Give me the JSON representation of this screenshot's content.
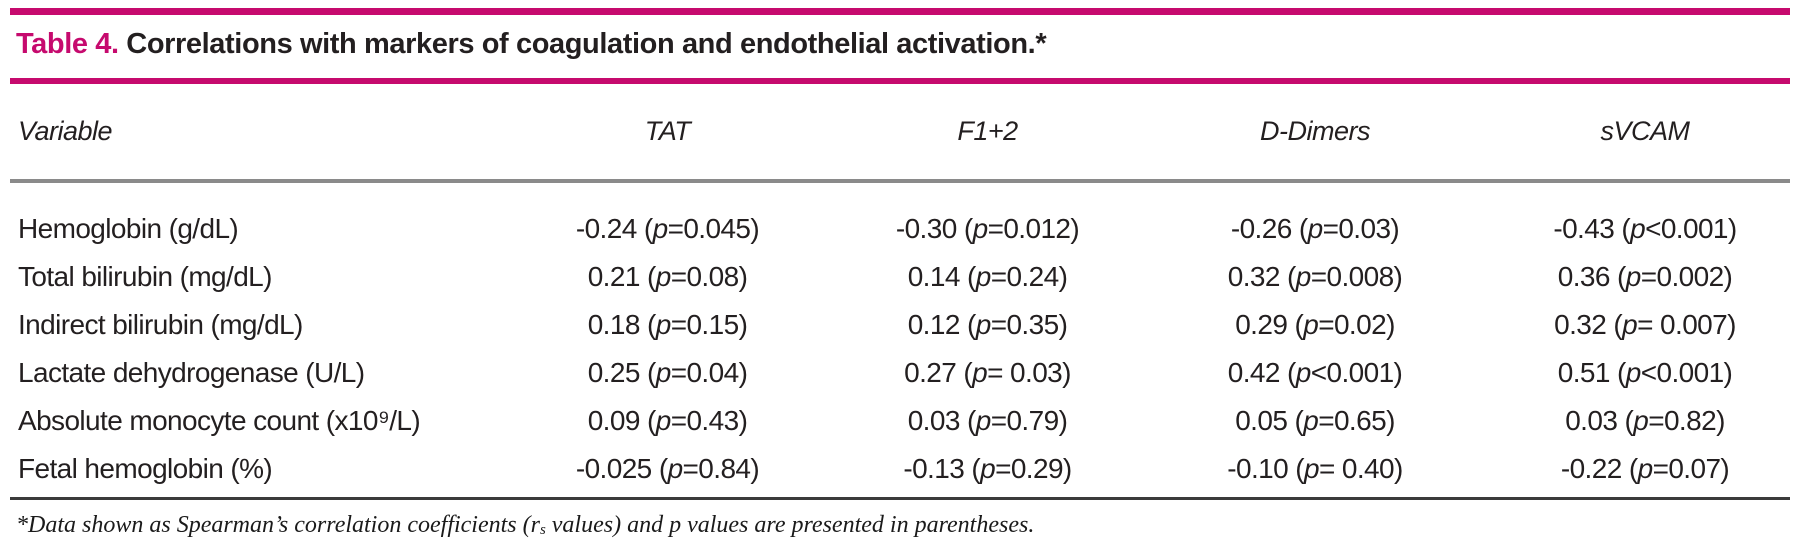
{
  "colors": {
    "accent_pink": "#c60a6e",
    "rule_gray": "#8a8a8a",
    "rule_dark": "#3b3b3b",
    "text": "#231f20"
  },
  "title": {
    "label": "Table 4.",
    "text": " Correlations with markers of coagulation and endothelial activation.*"
  },
  "table": {
    "p_label": "p",
    "columns": [
      "Variable",
      "TAT",
      "F1+2",
      "D-Dimers",
      "sVCAM"
    ],
    "rows": [
      {
        "variable": "Hemoglobin (g/dL)",
        "cells": [
          {
            "r": "-0.24",
            "p": "=0.045"
          },
          {
            "r": "-0.30",
            "p": "=0.012"
          },
          {
            "r": "-0.26",
            "p": "=0.03"
          },
          {
            "r": "-0.43",
            "p": "<0.001"
          }
        ]
      },
      {
        "variable": "Total bilirubin (mg/dL)",
        "cells": [
          {
            "r": "0.21",
            "p": "=0.08"
          },
          {
            "r": "0.14",
            "p": "=0.24"
          },
          {
            "r": "0.32",
            "p": "=0.008"
          },
          {
            "r": "0.36",
            "p": "=0.002"
          }
        ]
      },
      {
        "variable": "Indirect bilirubin (mg/dL)",
        "cells": [
          {
            "r": "0.18",
            "p": "=0.15"
          },
          {
            "r": "0.12",
            "p": "=0.35"
          },
          {
            "r": "0.29",
            "p": "=0.02"
          },
          {
            "r": "0.32",
            "p": "= 0.007"
          }
        ]
      },
      {
        "variable": "Lactate dehydrogenase (U/L)",
        "cells": [
          {
            "r": "0.25",
            "p": "=0.04"
          },
          {
            "r": "0.27",
            "p": "= 0.03"
          },
          {
            "r": "0.42",
            "p": "<0.001"
          },
          {
            "r": "0.51",
            "p": "<0.001"
          }
        ]
      },
      {
        "variable": "Absolute monocyte count (x10⁹/L)",
        "cells": [
          {
            "r": "0.09",
            "p": "=0.43"
          },
          {
            "r": "0.03",
            "p": "=0.79"
          },
          {
            "r": "0.05",
            "p": "=0.65"
          },
          {
            "r": "0.03",
            "p": "=0.82"
          }
        ]
      },
      {
        "variable": "Fetal hemoglobin (%)",
        "cells": [
          {
            "r": "-0.025",
            "p": "=0.84"
          },
          {
            "r": "-0.13",
            "p": "=0.29"
          },
          {
            "r": "-0.10",
            "p": "= 0.40"
          },
          {
            "r": "-0.22",
            "p": "=0.07"
          }
        ]
      }
    ]
  },
  "footnote": {
    "part1": "*Data shown as Spearman’s correlation coefficients (r",
    "sub": "s",
    "part2": " values) and p values are presented in parentheses."
  }
}
